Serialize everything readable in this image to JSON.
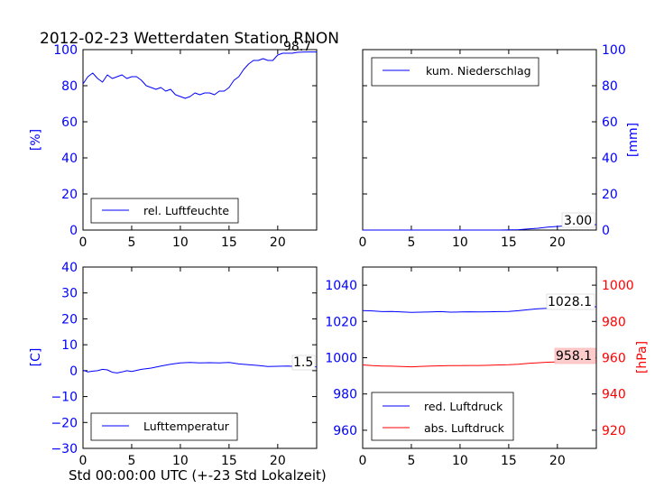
{
  "chart_data": [
    {
      "type": "line",
      "title": "2012-02-23 Wetterdaten Station RNON",
      "ylabel": "[%]",
      "xlabel": "",
      "xlim": [
        0,
        24
      ],
      "ylim": [
        0,
        100
      ],
      "x_ticks": [
        "0",
        "5",
        "10",
        "15",
        "20"
      ],
      "y_ticks": [
        "0",
        "20",
        "40",
        "60",
        "80",
        "100"
      ],
      "legend_position": "bottom-left",
      "annotation": "98.7",
      "series": [
        {
          "name": "rel. Luftfeuchte",
          "color": "#0000ff",
          "x": [
            0,
            0.5,
            1,
            1.5,
            2,
            2.5,
            3,
            3.5,
            4,
            4.5,
            5,
            5.5,
            6,
            6.5,
            7,
            7.5,
            8,
            8.5,
            9,
            9.5,
            10,
            10.5,
            11,
            11.5,
            12,
            12.5,
            13,
            13.5,
            14,
            14.5,
            15,
            15.5,
            16,
            16.5,
            17,
            17.5,
            18,
            18.5,
            19,
            19.5,
            20,
            20.5,
            21,
            21.5,
            22,
            22.5,
            23,
            23.5,
            24
          ],
          "y": [
            81,
            85,
            87,
            84,
            82,
            86,
            84,
            85,
            86,
            84,
            85,
            85,
            83,
            80,
            79,
            78,
            79,
            77,
            78,
            75,
            74,
            73,
            74,
            76,
            75,
            76,
            76,
            75,
            77,
            77,
            79,
            83,
            85,
            89,
            92,
            94,
            94,
            95,
            94,
            94,
            97,
            98,
            98,
            98,
            98.5,
            98.6,
            98.7,
            98.7,
            98.7
          ]
        }
      ]
    },
    {
      "type": "line",
      "title": "",
      "ylabel": "[mm]",
      "xlabel": "",
      "xlim": [
        0,
        24
      ],
      "ylim": [
        0,
        100
      ],
      "x_ticks": [
        "0",
        "5",
        "10",
        "15",
        "20"
      ],
      "y_ticks": [
        "0",
        "20",
        "40",
        "60",
        "80",
        "100"
      ],
      "legend_position": "top-left",
      "annotation": "3.00",
      "series": [
        {
          "name": "kum. Niederschlag",
          "color": "#0000ff",
          "x": [
            0,
            2,
            4,
            6,
            8,
            10,
            12,
            14,
            16,
            17,
            18,
            19,
            20,
            21,
            22,
            23,
            24
          ],
          "y": [
            0,
            0,
            0,
            0,
            0,
            0,
            0,
            0,
            0.2,
            0.6,
            1.0,
            1.6,
            2.0,
            2.4,
            2.6,
            2.8,
            3.0
          ]
        }
      ]
    },
    {
      "type": "line",
      "title": "",
      "ylabel": "[C]",
      "xlabel": "Std 00:00:00 UTC (+-23 Std Lokalzeit)",
      "xlim": [
        0,
        24
      ],
      "ylim": [
        -30,
        40
      ],
      "x_ticks": [
        "0",
        "5",
        "10",
        "15",
        "20"
      ],
      "y_ticks": [
        "−30",
        "−20",
        "−10",
        "0",
        "10",
        "20",
        "30",
        "40"
      ],
      "legend_position": "bottom-left",
      "annotation": "1.5",
      "series": [
        {
          "name": "Lufttemperatur",
          "color": "#0000ff",
          "x": [
            0,
            0.5,
            1,
            1.5,
            2,
            2.5,
            3,
            3.5,
            4,
            4.5,
            5,
            6,
            7,
            8,
            9,
            10,
            11,
            12,
            13,
            14,
            15,
            16,
            17,
            18,
            19,
            20,
            21,
            22,
            23,
            24
          ],
          "y": [
            0.2,
            -0.5,
            -0.2,
            0,
            0.5,
            0.3,
            -0.6,
            -0.9,
            -0.5,
            0,
            -0.3,
            0.5,
            1.0,
            1.8,
            2.5,
            3.0,
            3.2,
            3.0,
            3.1,
            3.0,
            3.2,
            2.6,
            2.3,
            2.0,
            1.6,
            1.7,
            1.8,
            1.6,
            1.5,
            1.5
          ]
        }
      ]
    },
    {
      "type": "line",
      "title": "",
      "ylabel_right": "[hPa]",
      "xlabel": "",
      "xlim": [
        0,
        24
      ],
      "ylim": [
        950,
        1050
      ],
      "ylim_right": [
        910,
        1010
      ],
      "x_ticks": [
        "0",
        "5",
        "10",
        "15",
        "20"
      ],
      "y_ticks": [
        "960",
        "980",
        "1000",
        "1020",
        "1040"
      ],
      "y_ticks_right": [
        "920",
        "940",
        "960",
        "980",
        "1000"
      ],
      "legend_position": "bottom-left",
      "annotations": [
        "1028.1",
        "958.1"
      ],
      "series": [
        {
          "name": "red. Luftdruck",
          "color": "#0000ff",
          "axis": "left",
          "x": [
            0,
            1,
            2,
            3,
            4,
            5,
            6,
            7,
            8,
            9,
            10,
            11,
            12,
            13,
            14,
            15,
            16,
            17,
            18,
            19,
            20,
            21,
            22,
            23,
            24
          ],
          "y": [
            1026.0,
            1025.8,
            1025.4,
            1025.5,
            1025.2,
            1025.0,
            1025.1,
            1025.2,
            1025.4,
            1025.1,
            1025.2,
            1025.3,
            1025.2,
            1025.3,
            1025.4,
            1025.5,
            1025.9,
            1026.5,
            1027.0,
            1027.2,
            1027.4,
            1027.6,
            1027.8,
            1028.0,
            1028.1
          ]
        },
        {
          "name": "abs. Luftdruck",
          "color": "#ff0000",
          "axis": "right",
          "x": [
            0,
            1,
            2,
            3,
            4,
            5,
            6,
            7,
            8,
            9,
            10,
            11,
            12,
            13,
            14,
            15,
            16,
            17,
            18,
            19,
            20,
            21,
            22,
            23,
            24
          ],
          "y": [
            956.0,
            955.6,
            955.4,
            955.3,
            955.1,
            955.0,
            955.2,
            955.4,
            955.5,
            955.6,
            955.6,
            955.7,
            955.7,
            955.8,
            956.0,
            956.1,
            956.4,
            956.9,
            957.2,
            957.5,
            957.7,
            957.8,
            957.9,
            958.0,
            958.1
          ]
        }
      ]
    }
  ]
}
